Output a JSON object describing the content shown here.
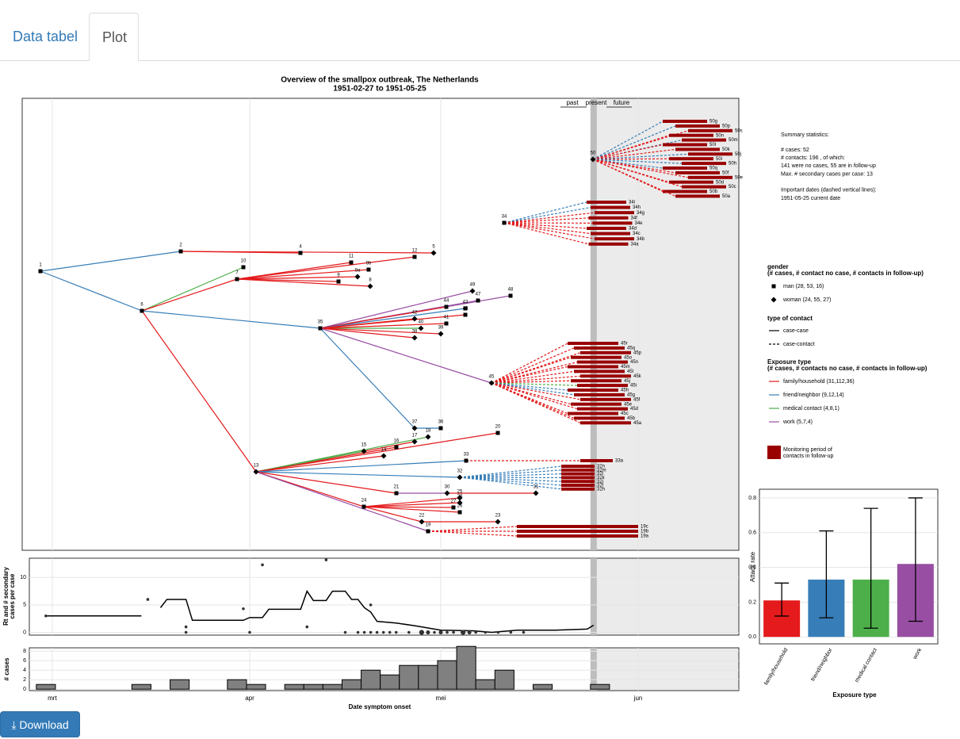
{
  "tabs": [
    "Data tabel",
    "Plot"
  ],
  "download": "Download",
  "tree": {
    "title": "Overview of the  smallpox  outbreak,  The Netherlands",
    "subtitle": "1951-02-27  to  1951-05-25",
    "timeline": [
      "past",
      "present",
      "future"
    ],
    "nodes": [
      {
        "label": "1",
        "gender": 0
      },
      {
        "label": "2",
        "gender": 0
      },
      {
        "label": "4",
        "gender": 0
      },
      {
        "label": "12",
        "gender": 0
      },
      {
        "label": "5",
        "gender": 1
      },
      {
        "label": "6",
        "gender": 0
      },
      {
        "label": "10",
        "gender": 0
      },
      {
        "label": "7",
        "gender": 0
      },
      {
        "label": "11",
        "gender": 0
      },
      {
        "label": "9b",
        "gender": 0
      },
      {
        "label": "9",
        "gender": 0
      },
      {
        "label": "9a",
        "gender": 1
      },
      {
        "label": "8",
        "gender": 1
      },
      {
        "label": "35",
        "gender": 0
      },
      {
        "label": "49",
        "gender": 1
      },
      {
        "label": "48",
        "gender": 0
      },
      {
        "label": "47",
        "gender": 0
      },
      {
        "label": "44",
        "gender": 0
      },
      {
        "label": "43",
        "gender": 0
      },
      {
        "label": "46",
        "gender": 0
      },
      {
        "label": "42",
        "gender": 1
      },
      {
        "label": "40",
        "gender": 1
      },
      {
        "label": "41",
        "gender": 0
      },
      {
        "label": "39",
        "gender": 1
      },
      {
        "label": "38",
        "gender": 1
      },
      {
        "label": "45",
        "gender": 1
      },
      {
        "label": "37",
        "gender": 1
      },
      {
        "label": "36",
        "gender": 0
      },
      {
        "label": "13",
        "gender": 1
      },
      {
        "label": "18",
        "gender": 1
      },
      {
        "label": "17",
        "gender": 1
      },
      {
        "label": "16",
        "gender": 0
      },
      {
        "label": "15",
        "gender": 1
      },
      {
        "label": "14",
        "gender": 1
      },
      {
        "label": "20",
        "gender": 0
      },
      {
        "label": "33",
        "gender": 0
      },
      {
        "label": "32",
        "gender": 1
      },
      {
        "label": "21",
        "gender": 0
      },
      {
        "label": "30",
        "gender": 1
      },
      {
        "label": "31",
        "gender": 1
      },
      {
        "label": "24",
        "gender": 0
      },
      {
        "label": "25",
        "gender": 1
      },
      {
        "label": "27",
        "gender": 0
      },
      {
        "label": "28",
        "gender": 1
      },
      {
        "label": "26",
        "gender": 0
      },
      {
        "label": "22",
        "gender": 1
      },
      {
        "label": "23",
        "gender": 1
      },
      {
        "label": "19",
        "gender": 0
      },
      {
        "label": "34",
        "gender": 0
      },
      {
        "label": "50",
        "gender": 1
      }
    ],
    "edges": [
      [
        0,
        1,
        1
      ],
      [
        0,
        5,
        1
      ],
      [
        1,
        2,
        0
      ],
      [
        1,
        4,
        0
      ],
      [
        5,
        6,
        2
      ],
      [
        5,
        7,
        0
      ],
      [
        7,
        8,
        0
      ],
      [
        7,
        9,
        0
      ],
      [
        7,
        10,
        0
      ],
      [
        7,
        11,
        0
      ],
      [
        7,
        12,
        0
      ],
      [
        7,
        3,
        0
      ],
      [
        5,
        13,
        1
      ],
      [
        5,
        28,
        0
      ],
      [
        13,
        14,
        3
      ],
      [
        13,
        15,
        3
      ],
      [
        13,
        16,
        3
      ],
      [
        13,
        17,
        0
      ],
      [
        13,
        18,
        1
      ],
      [
        13,
        19,
        0
      ],
      [
        13,
        20,
        0
      ],
      [
        13,
        21,
        2
      ],
      [
        13,
        22,
        0
      ],
      [
        13,
        23,
        0
      ],
      [
        13,
        24,
        0
      ],
      [
        13,
        25,
        3
      ],
      [
        13,
        26,
        1
      ],
      [
        26,
        27,
        1
      ],
      [
        28,
        29,
        2
      ],
      [
        28,
        30,
        0
      ],
      [
        28,
        31,
        0
      ],
      [
        28,
        32,
        2
      ],
      [
        28,
        33,
        0
      ],
      [
        28,
        34,
        0
      ],
      [
        28,
        35,
        1
      ],
      [
        28,
        36,
        1
      ],
      [
        28,
        37,
        0
      ],
      [
        37,
        38,
        3
      ],
      [
        38,
        39,
        0
      ],
      [
        28,
        40,
        0
      ],
      [
        40,
        41,
        0
      ],
      [
        40,
        42,
        0
      ],
      [
        40,
        43,
        0
      ],
      [
        40,
        44,
        0
      ],
      [
        40,
        45,
        0
      ],
      [
        45,
        46,
        0
      ],
      [
        28,
        47,
        3
      ]
    ],
    "contacts": [
      {
        "parent": 49,
        "labels": [
          "50g",
          "50p",
          "50s",
          "50n",
          "50m",
          "50l",
          "50k",
          "50j",
          "50i",
          "50h",
          "50q",
          "50f",
          "50e",
          "50d",
          "50c",
          "50b",
          "50a"
        ],
        "exposure": [
          1,
          1,
          0,
          0,
          1,
          0,
          0,
          1,
          0,
          1,
          1,
          0,
          0,
          0,
          0,
          0,
          0
        ]
      },
      {
        "parent": 48,
        "labels": [
          "34i",
          "34h",
          "34g",
          "34f",
          "34e",
          "34d",
          "34c",
          "34b",
          "34a"
        ],
        "exposure": [
          1,
          1,
          0,
          0,
          0,
          0,
          0,
          0,
          0
        ]
      },
      {
        "parent": 25,
        "labels": [
          "45r",
          "45q",
          "45p",
          "45o",
          "45n",
          "45m",
          "45l",
          "45k",
          "45j",
          "45i",
          "45h",
          "45g",
          "45f",
          "45e",
          "45d",
          "45c",
          "45b",
          "45a"
        ],
        "exposure": [
          0,
          0,
          0,
          0,
          0,
          0,
          0,
          0,
          0,
          2,
          1,
          1,
          0,
          0,
          0,
          0,
          0,
          0
        ]
      },
      {
        "parent": 35,
        "labels": [
          "33a"
        ],
        "exposure": [
          0
        ]
      },
      {
        "parent": 36,
        "labels": [
          "32n",
          "32m",
          "32l",
          "32k",
          "32j",
          "32i",
          "32h"
        ],
        "exposure": [
          1,
          1,
          1,
          1,
          1,
          1,
          1
        ]
      },
      {
        "parent": 47,
        "labels": [
          "19c",
          "19b",
          "19a"
        ],
        "exposure": [
          0,
          0,
          0
        ]
      }
    ]
  },
  "summary": {
    "title": "Summary statistics:",
    "blocks": [
      [
        "# cases:  52",
        "# contacts: 196 , of which:",
        "141  were no cases,  55  are in follow-up",
        "Max. # secondary cases per case: 13"
      ],
      [
        "Important dates (dashed vertical lines):",
        "1951-05-25 current date"
      ]
    ]
  },
  "legend": {
    "gender": {
      "title": "gender",
      "subtitle": "(# cases, # contact no case, # contacts in follow-up)",
      "items": [
        "man (28, 53, 16)",
        "woman (24, 55, 27)"
      ]
    },
    "contact": {
      "title": "type of contact",
      "items": [
        "case-case",
        "case-contact"
      ]
    },
    "exposure": {
      "title": "Exposure type",
      "subtitle": "(# cases, # contacts no case, # contacts in follow-up)",
      "items": [
        "family/household (31,112,36)",
        "friend/neighbor (9,12,14)",
        "medical contact (4,8,1)",
        "work (5,7,4)"
      ],
      "colors": [
        "#e41a1c",
        "#377eb8",
        "#4daf4a",
        "#984ea3"
      ]
    },
    "monitoring": {
      "label": [
        "Monitoring period of",
        "contacts in follow-up"
      ],
      "color": "#990000"
    }
  },
  "chart_data": [
    {
      "type": "line",
      "ylabel": [
        "Rt and # secondary",
        "cases per case"
      ],
      "color": "#000000",
      "x": [
        -1,
        14,
        15,
        17,
        18,
        21,
        22,
        30,
        31,
        33,
        34,
        39,
        40,
        41,
        43,
        44,
        46,
        47,
        48,
        49,
        50,
        51,
        54,
        57,
        61,
        66,
        69,
        73,
        79,
        84,
        85
      ],
      "values": [
        3,
        3,
        null,
        4.5,
        6,
        6,
        2.2,
        2.2,
        2.7,
        2.7,
        4.2,
        4.2,
        7.5,
        5.8,
        5.8,
        7.5,
        7.5,
        6,
        6,
        4.5,
        3.7,
        2,
        1.7,
        1.2,
        0.4,
        0.3,
        0,
        0.4,
        0.4,
        0.6,
        1.3
      ],
      "points": {
        "x": [
          -1,
          15,
          21,
          21,
          30,
          31,
          33,
          40,
          43,
          46,
          48,
          49,
          50,
          50,
          51,
          52,
          53,
          54,
          56,
          58,
          59,
          60,
          61,
          62,
          63,
          64.5,
          65.5,
          66.5,
          68,
          70,
          72,
          74
        ],
        "values": [
          3,
          6,
          1,
          0,
          4.3,
          0,
          12.3,
          1,
          13.2,
          0,
          0,
          0,
          5,
          0,
          0,
          0,
          0,
          0,
          0,
          0,
          0,
          0,
          0,
          0,
          0,
          0,
          0,
          0,
          0,
          0,
          0,
          0
        ],
        "sizes": [
          1,
          1,
          1,
          1,
          1,
          1,
          1,
          1,
          1,
          1,
          1,
          1,
          1,
          1,
          1,
          1,
          1,
          1,
          1,
          3,
          2,
          1,
          2,
          1,
          1,
          3,
          2,
          1,
          1,
          1,
          1,
          1
        ],
        "color": "#333333"
      },
      "xlim": [
        -3.6,
        107.8
      ],
      "ylim": [
        -0.5,
        13.5
      ],
      "yticks": [
        0,
        5,
        10
      ]
    },
    {
      "type": "histogram",
      "ylabel": "# cases",
      "xlabel": "Date symptom onset",
      "color": "#808080",
      "present": 85,
      "bins": [
        -2.5,
        0.5,
        3.5,
        6.5,
        9.5,
        12.5,
        15.5,
        18.5,
        21.5,
        24.5,
        27.5,
        30.5,
        33.5,
        36.5,
        39.5,
        42.5,
        45.5,
        48.5,
        51.5,
        54.5,
        57.5,
        60.5,
        63.5,
        66.5,
        69.5,
        72.5,
        75.5,
        78.5,
        81.5,
        84.5,
        87.5
      ],
      "values": [
        1,
        0,
        0,
        0,
        0,
        1,
        0,
        2,
        0,
        0,
        2,
        1,
        0,
        1,
        1,
        1,
        2,
        4,
        3,
        5,
        5,
        6,
        9,
        2,
        4,
        0,
        1,
        0,
        0,
        1
      ],
      "xlim": [
        -3.6,
        107.8
      ],
      "ylim": [
        -0.3,
        8.7
      ],
      "yticks": [
        0,
        2,
        4,
        6,
        8
      ],
      "xticks": [
        {
          "value": 0,
          "label": "mrt"
        },
        {
          "value": 31,
          "label": "apr"
        },
        {
          "value": 61,
          "label": "mei"
        },
        {
          "value": 92,
          "label": "jun"
        }
      ]
    },
    {
      "type": "bar",
      "ylabel": "Attack rate",
      "xlabel": "Exposure type",
      "categories": [
        "family/household",
        "friend/neighbor",
        "medical contact",
        "work"
      ],
      "values": [
        0.21,
        0.33,
        0.33,
        0.42
      ],
      "lower": [
        0.12,
        0.11,
        0.05,
        0.09
      ],
      "upper": [
        0.31,
        0.61,
        0.74,
        0.8
      ],
      "colors": [
        "#e41a1c",
        "#377eb8",
        "#4daf4a",
        "#984ea3"
      ],
      "ylim": [
        -0.04,
        0.85
      ],
      "yticks": [
        {
          "value": 0,
          "label": "0.0"
        },
        {
          "value": 0.2,
          "label": "0.2"
        },
        {
          "value": 0.4,
          "label": "0.4"
        },
        {
          "value": 0.6,
          "label": "0.6"
        },
        {
          "value": 0.8,
          "label": "0.8"
        }
      ]
    }
  ]
}
